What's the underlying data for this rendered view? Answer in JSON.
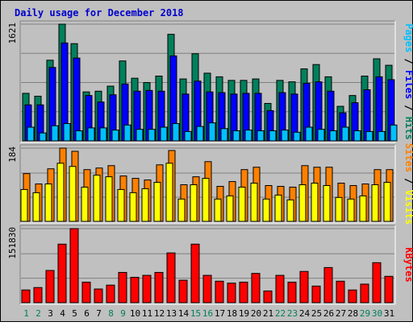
{
  "colors": {
    "background": "#c0c0c0",
    "panel": "#c0c0c0",
    "title": "#0000cc",
    "hits": "#00805c",
    "files": "#0000ff",
    "pages": "#00c0ff",
    "visits": "#ffff00",
    "sites": "#ff8000",
    "kbytes": "#ff0000",
    "weekday_label": "#000000",
    "weekend_label": "#00805c"
  },
  "chart_data": {
    "type": "bar",
    "title": "Daily usage for December 2018",
    "categories": [
      "1",
      "2",
      "3",
      "4",
      "5",
      "6",
      "7",
      "8",
      "9",
      "10",
      "11",
      "12",
      "13",
      "14",
      "15",
      "16",
      "17",
      "18",
      "19",
      "20",
      "21",
      "22",
      "23",
      "24",
      "25",
      "26",
      "27",
      "28",
      "29",
      "30",
      "31"
    ],
    "weekend_days": [
      "1",
      "2",
      "8",
      "9",
      "15",
      "16",
      "22",
      "23",
      "29",
      "30"
    ],
    "panels": [
      {
        "id": "top",
        "max_label": "1621",
        "ylim": [
          0,
          1621
        ],
        "series": [
          {
            "name": "Hits",
            "color_key": "hits",
            "values": [
              660,
              620,
              1120,
              1621,
              1350,
              680,
              690,
              760,
              1110,
              870,
              810,
              900,
              1480,
              860,
              1210,
              940,
              890,
              840,
              840,
              860,
              520,
              840,
              820,
              1000,
              1060,
              890,
              480,
              630,
              900,
              1140,
              1050
            ]
          },
          {
            "name": "Files",
            "color_key": "files",
            "values": [
              500,
              500,
              1020,
              1360,
              1150,
              630,
              540,
              640,
              790,
              690,
              700,
              690,
              1180,
              650,
              830,
              680,
              670,
              650,
              660,
              660,
              420,
              670,
              650,
              800,
              820,
              690,
              390,
              530,
              710,
              890,
              850
            ]
          },
          {
            "name": "Pages",
            "color_key": "pages",
            "values": [
              190,
              110,
              210,
              240,
              140,
              180,
              180,
              150,
              220,
              160,
              160,
              190,
              240,
              130,
              200,
              250,
              170,
              140,
              150,
              140,
              140,
              150,
              120,
              190,
              160,
              140,
              190,
              140,
              130,
              130,
              220
            ]
          }
        ]
      },
      {
        "id": "middle",
        "max_label": "184",
        "ylim": [
          0,
          184
        ],
        "series": [
          {
            "name": "Sites",
            "color_key": "sites",
            "values": [
              120,
              94,
              132,
              184,
              176,
              130,
              134,
              140,
              114,
              108,
              104,
              142,
              178,
              92,
              112,
              150,
              88,
              100,
              130,
              136,
              90,
              88,
              86,
              140,
              136,
              136,
              96,
              90,
              94,
              130,
              130
            ]
          },
          {
            "name": "Visits",
            "color_key": "visits",
            "values": [
              80,
              72,
              94,
              146,
              138,
              86,
              116,
              112,
              80,
              72,
              82,
              98,
              146,
              56,
              92,
              108,
              56,
              64,
              86,
              96,
              56,
              66,
              54,
              92,
              96,
              90,
              60,
              56,
              64,
              92,
              98
            ]
          }
        ]
      },
      {
        "id": "bottom",
        "max_label": "151830",
        "ylim": [
          0,
          151830
        ],
        "series": [
          {
            "name": "KBytes",
            "color_key": "kbytes",
            "values": [
              26000,
              31000,
              66000,
              120000,
              151830,
              42000,
              28000,
              36000,
              62000,
              52000,
              56000,
              62000,
              102000,
              46000,
              120000,
              56000,
              44000,
              40000,
              42000,
              60000,
              24000,
              56000,
              42000,
              64000,
              34000,
              72000,
              44000,
              26000,
              38000,
              82000,
              54000
            ]
          }
        ]
      }
    ],
    "right_labels": {
      "top": [
        "Pages",
        " / ",
        "Files",
        " / ",
        "Hits"
      ],
      "middle": [
        "Sites",
        " / ",
        "Visits"
      ],
      "bottom": [
        "KBytes"
      ]
    }
  }
}
